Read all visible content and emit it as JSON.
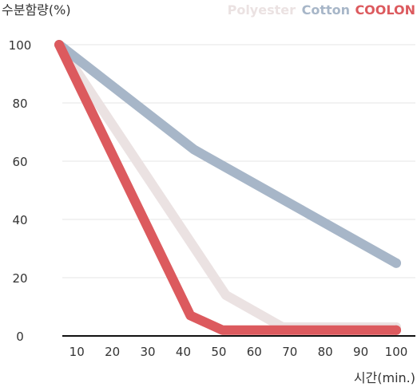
{
  "chart_data": {
    "type": "line",
    "ylabel": "수분함량(%)",
    "xlabel": "시간(min.)",
    "xlim": [
      5,
      100
    ],
    "ylim": [
      0,
      100
    ],
    "x_ticks": [
      10,
      20,
      30,
      40,
      50,
      60,
      70,
      80,
      90,
      100
    ],
    "y_ticks": [
      0,
      20,
      40,
      60,
      80,
      100
    ],
    "grid": "horizontal",
    "legend_position": "top-right",
    "series": [
      {
        "name": "Polyester",
        "color": "#ebe2e2",
        "points": [
          [
            5,
            100
          ],
          [
            52,
            14
          ],
          [
            68,
            3
          ],
          [
            100,
            3
          ]
        ]
      },
      {
        "name": "Cotton",
        "color": "#a7b6c8",
        "points": [
          [
            5,
            100
          ],
          [
            43,
            64
          ],
          [
            100,
            25
          ]
        ]
      },
      {
        "name": "COOLON",
        "color": "#dc5a5e",
        "points": [
          [
            5,
            100
          ],
          [
            42,
            7
          ],
          [
            51,
            2
          ],
          [
            100,
            2
          ]
        ]
      }
    ]
  }
}
